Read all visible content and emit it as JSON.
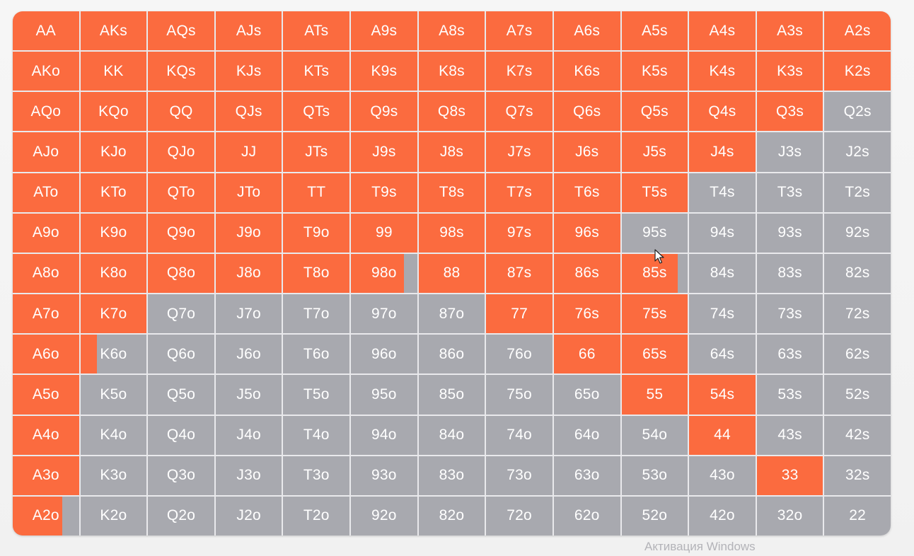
{
  "colors": {
    "raise": "#fb6b3f",
    "fold": "#a8a9af",
    "text": "#ffffff"
  },
  "grid": {
    "rows": [
      [
        [
          "AA",
          1
        ],
        [
          "AKs",
          1
        ],
        [
          "AQs",
          1
        ],
        [
          "AJs",
          1
        ],
        [
          "ATs",
          1
        ],
        [
          "A9s",
          1
        ],
        [
          "A8s",
          1
        ],
        [
          "A7s",
          1
        ],
        [
          "A6s",
          1
        ],
        [
          "A5s",
          1
        ],
        [
          "A4s",
          1
        ],
        [
          "A3s",
          1
        ],
        [
          "A2s",
          1
        ]
      ],
      [
        [
          "AKo",
          1
        ],
        [
          "KK",
          1
        ],
        [
          "KQs",
          1
        ],
        [
          "KJs",
          1
        ],
        [
          "KTs",
          1
        ],
        [
          "K9s",
          1
        ],
        [
          "K8s",
          1
        ],
        [
          "K7s",
          1
        ],
        [
          "K6s",
          1
        ],
        [
          "K5s",
          1
        ],
        [
          "K4s",
          1
        ],
        [
          "K3s",
          1
        ],
        [
          "K2s",
          1
        ]
      ],
      [
        [
          "AQo",
          1
        ],
        [
          "KQo",
          1
        ],
        [
          "QQ",
          1
        ],
        [
          "QJs",
          1
        ],
        [
          "QTs",
          1
        ],
        [
          "Q9s",
          1
        ],
        [
          "Q8s",
          1
        ],
        [
          "Q7s",
          1
        ],
        [
          "Q6s",
          1
        ],
        [
          "Q5s",
          1
        ],
        [
          "Q4s",
          1
        ],
        [
          "Q3s",
          1
        ],
        [
          "Q2s",
          0
        ]
      ],
      [
        [
          "AJo",
          1
        ],
        [
          "KJo",
          1
        ],
        [
          "QJo",
          1
        ],
        [
          "JJ",
          1
        ],
        [
          "JTs",
          1
        ],
        [
          "J9s",
          1
        ],
        [
          "J8s",
          1
        ],
        [
          "J7s",
          1
        ],
        [
          "J6s",
          1
        ],
        [
          "J5s",
          1
        ],
        [
          "J4s",
          1
        ],
        [
          "J3s",
          0
        ],
        [
          "J2s",
          0
        ]
      ],
      [
        [
          "ATo",
          1
        ],
        [
          "KTo",
          1
        ],
        [
          "QTo",
          1
        ],
        [
          "JTo",
          1
        ],
        [
          "TT",
          1
        ],
        [
          "T9s",
          1
        ],
        [
          "T8s",
          1
        ],
        [
          "T7s",
          1
        ],
        [
          "T6s",
          1
        ],
        [
          "T5s",
          1
        ],
        [
          "T4s",
          0
        ],
        [
          "T3s",
          0
        ],
        [
          "T2s",
          0
        ]
      ],
      [
        [
          "A9o",
          1
        ],
        [
          "K9o",
          1
        ],
        [
          "Q9o",
          1
        ],
        [
          "J9o",
          1
        ],
        [
          "T9o",
          1
        ],
        [
          "99",
          1
        ],
        [
          "98s",
          1
        ],
        [
          "97s",
          1
        ],
        [
          "96s",
          1
        ],
        [
          "95s",
          0
        ],
        [
          "94s",
          0
        ],
        [
          "93s",
          0
        ],
        [
          "92s",
          0
        ]
      ],
      [
        [
          "A8o",
          1
        ],
        [
          "K8o",
          1
        ],
        [
          "Q8o",
          1
        ],
        [
          "J8o",
          1
        ],
        [
          "T8o",
          1
        ],
        [
          "98o",
          0.8
        ],
        [
          "88",
          1
        ],
        [
          "87s",
          1
        ],
        [
          "86s",
          1
        ],
        [
          "85s",
          0.85
        ],
        [
          "84s",
          0
        ],
        [
          "83s",
          0
        ],
        [
          "82s",
          0
        ]
      ],
      [
        [
          "A7o",
          1
        ],
        [
          "K7o",
          1
        ],
        [
          "Q7o",
          0
        ],
        [
          "J7o",
          0
        ],
        [
          "T7o",
          0
        ],
        [
          "97o",
          0
        ],
        [
          "87o",
          0
        ],
        [
          "77",
          1
        ],
        [
          "76s",
          1
        ],
        [
          "75s",
          1
        ],
        [
          "74s",
          0
        ],
        [
          "73s",
          0
        ],
        [
          "72s",
          0
        ]
      ],
      [
        [
          "A6o",
          1
        ],
        [
          "K6o",
          0.25
        ],
        [
          "Q6o",
          0
        ],
        [
          "J6o",
          0
        ],
        [
          "T6o",
          0
        ],
        [
          "96o",
          0
        ],
        [
          "86o",
          0
        ],
        [
          "76o",
          0
        ],
        [
          "66",
          1
        ],
        [
          "65s",
          1
        ],
        [
          "64s",
          0
        ],
        [
          "63s",
          0
        ],
        [
          "62s",
          0
        ]
      ],
      [
        [
          "A5o",
          1
        ],
        [
          "K5o",
          0
        ],
        [
          "Q5o",
          0
        ],
        [
          "J5o",
          0
        ],
        [
          "T5o",
          0
        ],
        [
          "95o",
          0
        ],
        [
          "85o",
          0
        ],
        [
          "75o",
          0
        ],
        [
          "65o",
          0
        ],
        [
          "55",
          1
        ],
        [
          "54s",
          1
        ],
        [
          "53s",
          0
        ],
        [
          "52s",
          0
        ]
      ],
      [
        [
          "A4o",
          1
        ],
        [
          "K4o",
          0
        ],
        [
          "Q4o",
          0
        ],
        [
          "J4o",
          0
        ],
        [
          "T4o",
          0
        ],
        [
          "94o",
          0
        ],
        [
          "84o",
          0
        ],
        [
          "74o",
          0
        ],
        [
          "64o",
          0
        ],
        [
          "54o",
          0
        ],
        [
          "44",
          1
        ],
        [
          "43s",
          0
        ],
        [
          "42s",
          0
        ]
      ],
      [
        [
          "A3o",
          1
        ],
        [
          "K3o",
          0
        ],
        [
          "Q3o",
          0
        ],
        [
          "J3o",
          0
        ],
        [
          "T3o",
          0
        ],
        [
          "93o",
          0
        ],
        [
          "83o",
          0
        ],
        [
          "73o",
          0
        ],
        [
          "63o",
          0
        ],
        [
          "53o",
          0
        ],
        [
          "43o",
          0
        ],
        [
          "33",
          1
        ],
        [
          "32s",
          0
        ]
      ],
      [
        [
          "A2o",
          0.75
        ],
        [
          "K2o",
          0
        ],
        [
          "Q2o",
          0
        ],
        [
          "J2o",
          0
        ],
        [
          "T2o",
          0
        ],
        [
          "92o",
          0
        ],
        [
          "82o",
          0
        ],
        [
          "72o",
          0
        ],
        [
          "62o",
          0
        ],
        [
          "52o",
          0
        ],
        [
          "42o",
          0
        ],
        [
          "32o",
          0
        ],
        [
          "22",
          0
        ]
      ]
    ]
  },
  "watermark": "Активация Windows",
  "cursor_icon": "arrow-cursor-icon"
}
